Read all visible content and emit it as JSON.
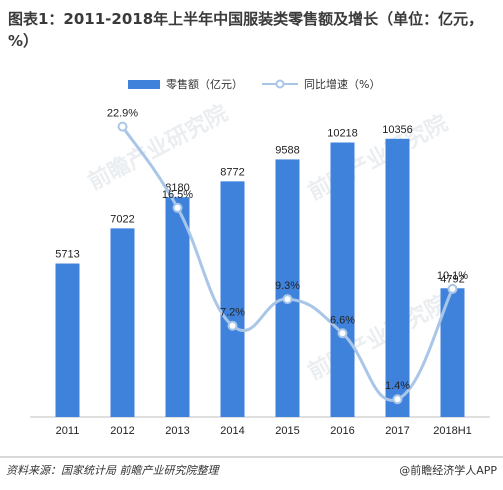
{
  "title": "图表1：2011-2018年上半年中国服装类零售额及增长（单位：亿元，%）",
  "legend": {
    "bar_label": "零售额（亿元）",
    "line_label": "同比增速（%）"
  },
  "colors": {
    "bar": "#3f82dc",
    "line": "#a9c6e8",
    "marker_fill": "#ffffff",
    "marker_stroke": "#a9c6e8"
  },
  "watermarks": [
    "前瞻产业研究院",
    "前瞻产业研究院",
    "前瞻产业研究院"
  ],
  "footer": {
    "source": "资料来源：国家统计局  前瞻产业研究院整理",
    "brand": "@前瞻经济学人APP"
  },
  "chart_data": {
    "type": "bar",
    "categories": [
      "2011",
      "2012",
      "2013",
      "2014",
      "2015",
      "2016",
      "2017",
      "2018H1"
    ],
    "series": [
      {
        "name": "零售额（亿元）",
        "type": "bar",
        "values": [
          5713,
          7022,
          8180,
          8772,
          9588,
          10218,
          10356,
          4792
        ],
        "labels": [
          "5713",
          "7022",
          "8180",
          "8772",
          "9588",
          "10218",
          "10356",
          "4792"
        ]
      },
      {
        "name": "同比增速（%）",
        "type": "line",
        "values": [
          null,
          22.9,
          16.5,
          7.2,
          9.3,
          6.6,
          1.4,
          10.1
        ],
        "labels": [
          "",
          "22.9%",
          "16.5%",
          "7.2%",
          "9.3%",
          "6.6%",
          "1.4%",
          "10.1%"
        ]
      }
    ],
    "ylim_bar": [
      0,
      11800
    ],
    "ylim_line": [
      0,
      25.0
    ],
    "grid": false,
    "legend_position": "top"
  }
}
